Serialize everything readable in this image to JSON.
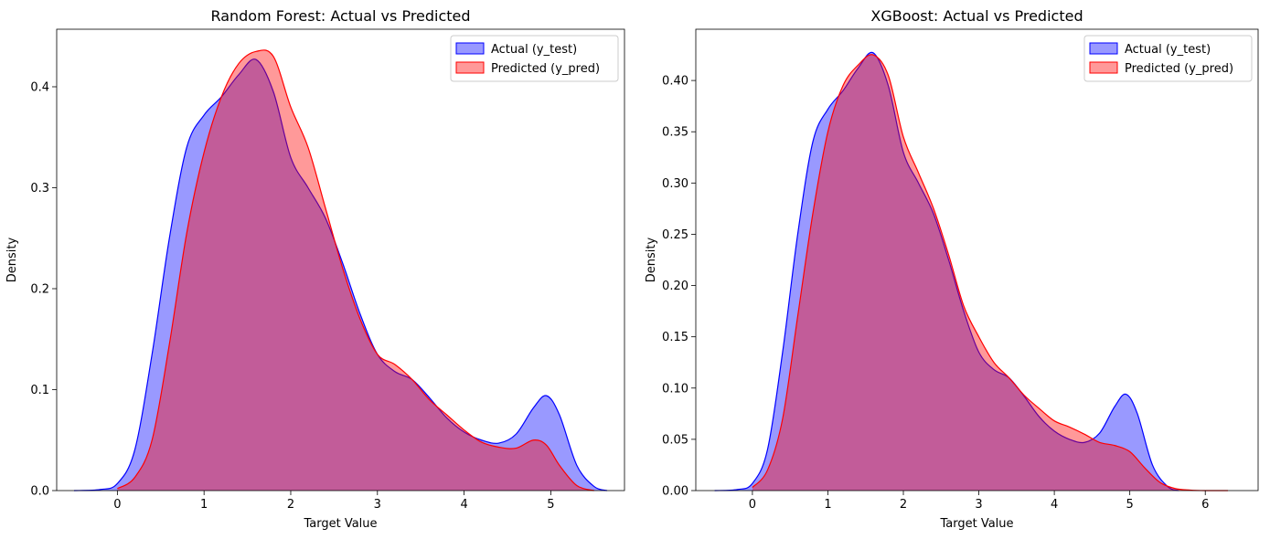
{
  "chart_data": [
    {
      "type": "area",
      "title": "Random Forest: Actual vs Predicted",
      "xlabel": "Target Value",
      "ylabel": "Density",
      "xlim": [
        -0.7,
        5.85
      ],
      "ylim": [
        0,
        0.457
      ],
      "xticks": [
        0,
        1,
        2,
        3,
        4,
        5
      ],
      "xtick_labels": [
        "0",
        "1",
        "2",
        "3",
        "4",
        "5"
      ],
      "yticks": [
        0,
        0.1,
        0.2,
        0.3,
        0.4
      ],
      "ytick_labels": [
        "0.0",
        "0.1",
        "0.2",
        "0.3",
        "0.4"
      ],
      "grid": false,
      "legend_position": "top-right",
      "series": [
        {
          "name": "Actual (y_test)",
          "line_color": "#0000ff",
          "fill_color": "#0000ff",
          "fill_alpha": 0.4,
          "x": [
            -0.5,
            -0.2,
            0,
            0.2,
            0.4,
            0.6,
            0.8,
            1.0,
            1.2,
            1.4,
            1.6,
            1.8,
            2.0,
            2.2,
            2.4,
            2.6,
            2.8,
            3.0,
            3.2,
            3.4,
            3.6,
            3.8,
            4.0,
            4.2,
            4.4,
            4.6,
            4.8,
            4.95,
            5.1,
            5.3,
            5.5,
            5.65
          ],
          "y": [
            0.0,
            0.001,
            0.007,
            0.04,
            0.135,
            0.25,
            0.34,
            0.372,
            0.39,
            0.412,
            0.427,
            0.395,
            0.33,
            0.3,
            0.27,
            0.225,
            0.175,
            0.135,
            0.118,
            0.11,
            0.092,
            0.072,
            0.058,
            0.05,
            0.047,
            0.056,
            0.082,
            0.094,
            0.075,
            0.025,
            0.004,
            0.0
          ]
        },
        {
          "name": "Predicted (y_pred)",
          "line_color": "#ff0000",
          "fill_color": "#ff0000",
          "fill_alpha": 0.4,
          "x": [
            0,
            0.2,
            0.4,
            0.6,
            0.8,
            1.0,
            1.2,
            1.4,
            1.6,
            1.8,
            2.0,
            2.2,
            2.4,
            2.6,
            2.8,
            3.0,
            3.2,
            3.4,
            3.6,
            3.8,
            4.0,
            4.2,
            4.4,
            4.6,
            4.8,
            4.95,
            5.1,
            5.3,
            5.5
          ],
          "y": [
            0.002,
            0.013,
            0.05,
            0.145,
            0.255,
            0.335,
            0.39,
            0.423,
            0.435,
            0.43,
            0.38,
            0.34,
            0.28,
            0.22,
            0.17,
            0.135,
            0.125,
            0.11,
            0.09,
            0.075,
            0.06,
            0.048,
            0.043,
            0.042,
            0.05,
            0.045,
            0.025,
            0.005,
            0.0
          ]
        }
      ]
    },
    {
      "type": "area",
      "title": "XGBoost: Actual vs Predicted",
      "xlabel": "Target Value",
      "ylabel": "Density",
      "xlim": [
        -0.75,
        6.7
      ],
      "ylim": [
        0,
        0.45
      ],
      "xticks": [
        0,
        1,
        2,
        3,
        4,
        5,
        6
      ],
      "xtick_labels": [
        "0",
        "1",
        "2",
        "3",
        "4",
        "5",
        "6"
      ],
      "yticks": [
        0,
        0.05,
        0.1,
        0.15,
        0.2,
        0.25,
        0.3,
        0.35,
        0.4
      ],
      "ytick_labels": [
        "0.00",
        "0.05",
        "0.10",
        "0.15",
        "0.20",
        "0.25",
        "0.30",
        "0.35",
        "0.40"
      ],
      "grid": false,
      "legend_position": "top-right",
      "series": [
        {
          "name": "Actual (y_test)",
          "line_color": "#0000ff",
          "fill_color": "#0000ff",
          "fill_alpha": 0.4,
          "x": [
            -0.5,
            -0.2,
            0,
            0.2,
            0.4,
            0.6,
            0.8,
            1.0,
            1.2,
            1.4,
            1.6,
            1.8,
            2.0,
            2.2,
            2.4,
            2.6,
            2.8,
            3.0,
            3.2,
            3.4,
            3.6,
            3.8,
            4.0,
            4.2,
            4.4,
            4.6,
            4.8,
            4.95,
            5.1,
            5.3,
            5.5,
            5.65
          ],
          "y": [
            0.0,
            0.001,
            0.007,
            0.04,
            0.135,
            0.25,
            0.34,
            0.372,
            0.39,
            0.412,
            0.427,
            0.395,
            0.33,
            0.3,
            0.27,
            0.225,
            0.175,
            0.135,
            0.118,
            0.11,
            0.092,
            0.072,
            0.058,
            0.05,
            0.047,
            0.056,
            0.082,
            0.094,
            0.075,
            0.025,
            0.004,
            0.0
          ]
        },
        {
          "name": "Predicted (y_pred)",
          "line_color": "#ff0000",
          "fill_color": "#ff0000",
          "fill_alpha": 0.4,
          "x": [
            0,
            0.2,
            0.4,
            0.6,
            0.8,
            1.0,
            1.2,
            1.4,
            1.6,
            1.8,
            2.0,
            2.2,
            2.4,
            2.6,
            2.8,
            3.0,
            3.2,
            3.4,
            3.6,
            3.8,
            4.0,
            4.2,
            4.4,
            4.6,
            4.8,
            5.0,
            5.2,
            5.4,
            5.6,
            5.8,
            6.0,
            6.3
          ],
          "y": [
            0.003,
            0.02,
            0.07,
            0.17,
            0.27,
            0.35,
            0.395,
            0.415,
            0.425,
            0.405,
            0.345,
            0.31,
            0.275,
            0.23,
            0.18,
            0.15,
            0.125,
            0.11,
            0.093,
            0.08,
            0.068,
            0.062,
            0.055,
            0.047,
            0.044,
            0.038,
            0.022,
            0.008,
            0.002,
            0.0005,
            0.0,
            0.0
          ]
        }
      ]
    }
  ]
}
